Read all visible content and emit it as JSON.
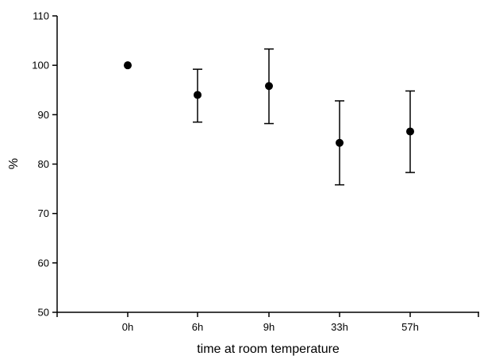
{
  "chart_data": {
    "type": "scatter",
    "xlabel": "time at room temperature",
    "ylabel": "%",
    "categories": [
      "0h",
      "6h",
      "9h",
      "33h",
      "57h"
    ],
    "series": [
      {
        "values": [
          100,
          94,
          95.8,
          84.3,
          86.6
        ],
        "error_upper": [
          100,
          99.2,
          103.3,
          92.8,
          94.8
        ],
        "error_lower": [
          100,
          88.5,
          88.2,
          75.8,
          78.3
        ]
      }
    ],
    "ylim": [
      50,
      110
    ],
    "yticks": [
      50,
      60,
      70,
      80,
      90,
      100,
      110
    ],
    "grid": false,
    "marker_color": "#000000",
    "axis_color": "#000000"
  }
}
